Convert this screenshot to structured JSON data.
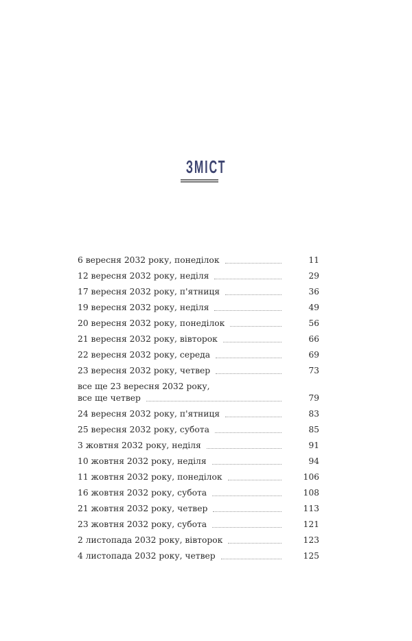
{
  "title": "ЗМІСТ",
  "entries": [
    {
      "label": "6 вересня 2032 року, понеділок",
      "page": "11"
    },
    {
      "label": "12 вересня 2032 року, неділя",
      "page": "29"
    },
    {
      "label": "17 вересня 2032 року, п'ятниця",
      "page": "36"
    },
    {
      "label": "19 вересня 2032 року, неділя",
      "page": "49"
    },
    {
      "label": "20 вересня 2032 року, понеділок",
      "page": "56"
    },
    {
      "label": "21 вересня 2032 року, вівторок",
      "page": "66"
    },
    {
      "label": "22 вересня 2032 року, середа",
      "page": "69"
    },
    {
      "label": "23 вересня 2032 року, четвер",
      "page": "73"
    },
    {
      "label": "все ще 23 вересня 2032 року,",
      "label2": "все ще четвер",
      "page": "79"
    },
    {
      "label": "24 вересня 2032 року, п'ятниця",
      "page": "83"
    },
    {
      "label": "25 вересня 2032 року, субота",
      "page": "85"
    },
    {
      "label": "3 жовтня 2032 року, неділя",
      "page": "91"
    },
    {
      "label": "10 жовтня 2032 року, неділя",
      "page": "94"
    },
    {
      "label": "11 жовтня 2032 року, понеділок",
      "page": "106"
    },
    {
      "label": "16 жовтня 2032 року, субота",
      "page": "108"
    },
    {
      "label": "21 жовтня 2032 року, четвер",
      "page": "113"
    },
    {
      "label": "23 жовтня 2032 року, субота",
      "page": "121"
    },
    {
      "label": "2 листопада 2032 року, вівторок",
      "page": "123"
    },
    {
      "label": "4 листопада 2032 року, четвер",
      "page": "125"
    }
  ]
}
